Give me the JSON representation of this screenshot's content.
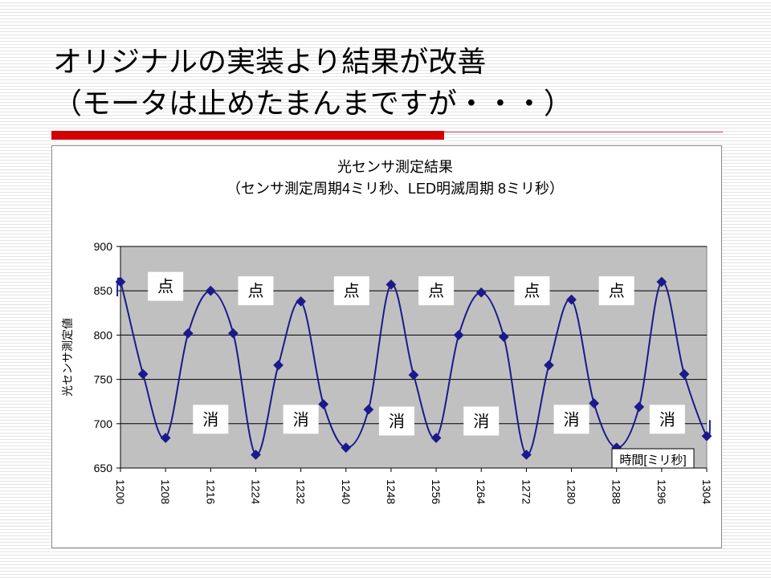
{
  "slide": {
    "title_line1": "オリジナルの実装より結果が改善",
    "title_line2": "（モータは止めたまんまですが・・・）"
  },
  "colors": {
    "accent": "#d20000",
    "series": "#1a1a8c",
    "plot_background": "#c0c0c0"
  },
  "chart_data": {
    "type": "line",
    "title": "光センサ測定結果",
    "subtitle": "（センサ測定周期4ミリ秒、LED明滅周期 8ミリ秒）",
    "ylabel": "光センサ測定値",
    "xlabel": "時間[ミリ秒]",
    "ylim": [
      650,
      900
    ],
    "yticks": [
      650,
      700,
      750,
      800,
      850,
      900
    ],
    "xlim": [
      1200,
      1304
    ],
    "xticks": [
      1200,
      1208,
      1216,
      1224,
      1232,
      1240,
      1248,
      1256,
      1264,
      1272,
      1280,
      1288,
      1296,
      1304
    ],
    "grid": "horizontal",
    "smooth": true,
    "series": [
      {
        "x": [
          1200,
          1204,
          1208,
          1212,
          1216,
          1220,
          1224,
          1228,
          1232,
          1236,
          1240,
          1244,
          1248,
          1252,
          1256,
          1260,
          1264,
          1268,
          1272,
          1276,
          1280,
          1284,
          1288,
          1292,
          1296,
          1300,
          1304
        ],
        "y": [
          860,
          756,
          684,
          802,
          850,
          802,
          665,
          766,
          838,
          722,
          673,
          716,
          857,
          755,
          684,
          800,
          848,
          798,
          665,
          766,
          840,
          723,
          673,
          719,
          860,
          756,
          686
        ]
      }
    ],
    "annotations": [
      {
        "text": "点",
        "x": 1208,
        "y": 855
      },
      {
        "text": "点",
        "x": 1224,
        "y": 850
      },
      {
        "text": "点",
        "x": 1241,
        "y": 850
      },
      {
        "text": "点",
        "x": 1256,
        "y": 850
      },
      {
        "text": "点",
        "x": 1273,
        "y": 850
      },
      {
        "text": "点",
        "x": 1288,
        "y": 850
      },
      {
        "text": "消",
        "x": 1216,
        "y": 705
      },
      {
        "text": "消",
        "x": 1232,
        "y": 705
      },
      {
        "text": "消",
        "x": 1249,
        "y": 703
      },
      {
        "text": "消",
        "x": 1264,
        "y": 703
      },
      {
        "text": "消",
        "x": 1280,
        "y": 705
      },
      {
        "text": "消",
        "x": 1297,
        "y": 705
      }
    ]
  }
}
